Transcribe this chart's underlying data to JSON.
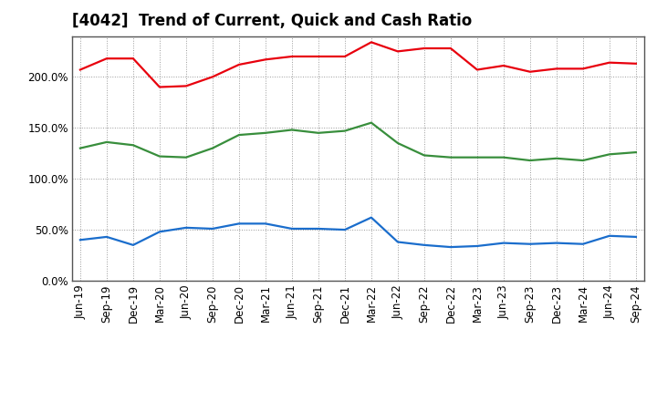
{
  "title": "[4042]  Trend of Current, Quick and Cash Ratio",
  "x_labels": [
    "Jun-19",
    "Sep-19",
    "Dec-19",
    "Mar-20",
    "Jun-20",
    "Sep-20",
    "Dec-20",
    "Mar-21",
    "Jun-21",
    "Sep-21",
    "Dec-21",
    "Mar-22",
    "Jun-22",
    "Sep-22",
    "Dec-22",
    "Mar-23",
    "Jun-23",
    "Sep-23",
    "Dec-23",
    "Mar-24",
    "Jun-24",
    "Sep-24"
  ],
  "current_ratio": [
    207,
    218,
    218,
    190,
    191,
    200,
    212,
    217,
    220,
    220,
    220,
    234,
    225,
    228,
    228,
    207,
    211,
    205,
    208,
    208,
    214,
    213
  ],
  "quick_ratio": [
    130,
    136,
    133,
    122,
    121,
    130,
    143,
    145,
    148,
    145,
    147,
    155,
    135,
    123,
    121,
    121,
    121,
    118,
    120,
    118,
    124,
    126
  ],
  "cash_ratio": [
    40,
    43,
    35,
    48,
    52,
    51,
    56,
    56,
    51,
    51,
    50,
    62,
    38,
    35,
    33,
    34,
    37,
    36,
    37,
    36,
    44,
    43
  ],
  "current_color": "#e8000d",
  "quick_color": "#388e3c",
  "cash_color": "#1a6dcc",
  "ylim": [
    0,
    240
  ],
  "yticks": [
    0,
    50,
    100,
    150,
    200
  ],
  "ytick_labels": [
    "0.0%",
    "50.0%",
    "100.0%",
    "150.0%",
    "200.0%"
  ],
  "bg_color": "#ffffff",
  "plot_bg_color": "#ffffff",
  "grid_color": "#999999",
  "line_width": 1.6,
  "title_fontsize": 12,
  "tick_fontsize": 8.5,
  "legend_fontsize": 9.5
}
